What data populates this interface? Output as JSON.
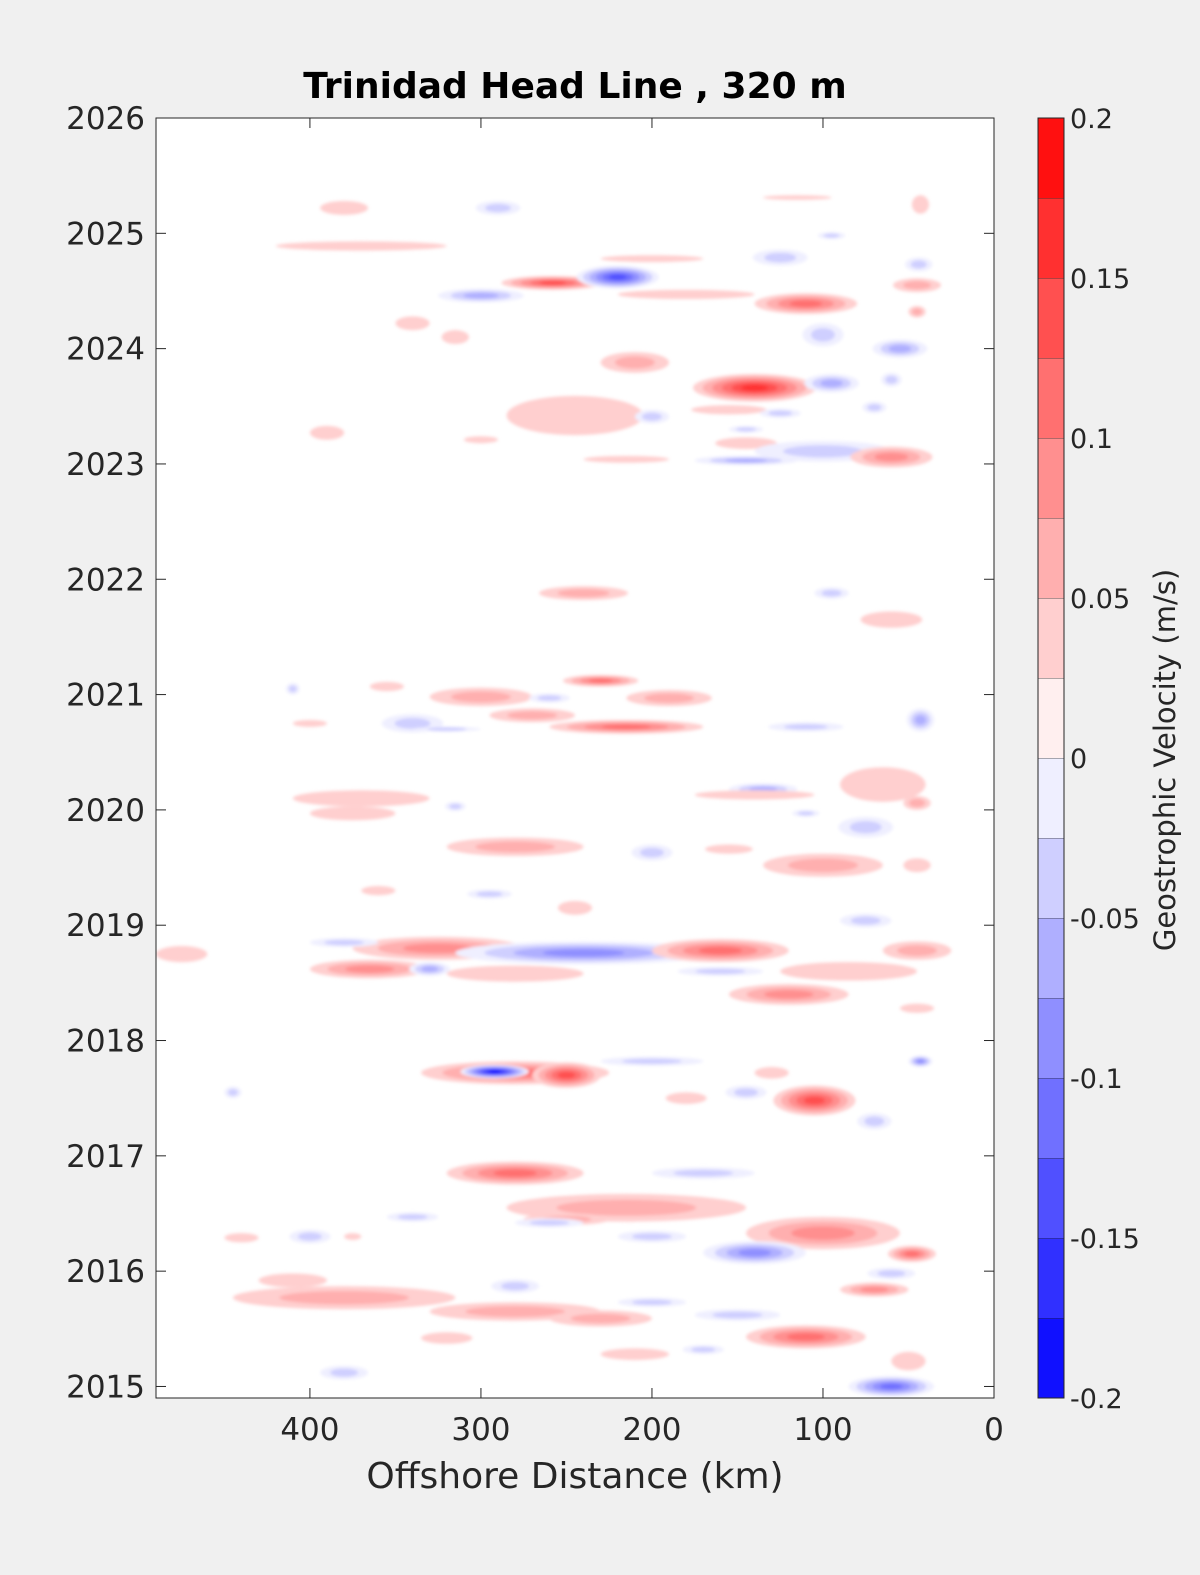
{
  "chart_data": {
    "type": "heatmap",
    "title": "Trinidad Head Line , 320 m",
    "xlabel": "Offshore Distance (km)",
    "ylabel": "",
    "xlim": [
      0,
      490
    ],
    "x_direction": "reversed",
    "ylim": [
      2014.9,
      2026
    ],
    "x_ticks": [
      400,
      300,
      200,
      100,
      0
    ],
    "y_ticks": [
      2015,
      2016,
      2017,
      2018,
      2019,
      2020,
      2021,
      2022,
      2023,
      2024,
      2025,
      2026
    ],
    "grid": false,
    "colorbar": {
      "label": "Geostrophic Velocity (m/s)",
      "range": [
        -0.2,
        0.2
      ],
      "levels": [
        -0.2,
        -0.175,
        -0.15,
        -0.125,
        -0.1,
        -0.075,
        -0.05,
        -0.025,
        0,
        0.025,
        0.05,
        0.075,
        0.1,
        0.125,
        0.15,
        0.175,
        0.2
      ],
      "tick_values": [
        0.2,
        0.15,
        0.1,
        0.05,
        0,
        -0.05,
        -0.1,
        -0.15,
        -0.2
      ],
      "tick_labels": [
        "0.2",
        "0.15",
        "0.1",
        "0.05",
        "0",
        "-0.05",
        "-0.1",
        "-0.15",
        "-0.2"
      ],
      "color_negative": "#0000ff",
      "color_zero": "#ffffff",
      "color_positive": "#ff0000"
    },
    "data_gaps": [
      [
        2022.0,
        2022.75
      ],
      [
        2018.2,
        2018.0
      ],
      [
        2020.65,
        2020.55
      ]
    ],
    "features": [
      {
        "x": 380,
        "y": 2025.22,
        "value": 0.03,
        "rx": 14,
        "ry": 0.06
      },
      {
        "x": 290,
        "y": 2025.22,
        "value": -0.035,
        "rx": 13,
        "ry": 0.06
      },
      {
        "x": 115,
        "y": 2025.31,
        "value": 0.03,
        "rx": 20,
        "ry": 0.02
      },
      {
        "x": 43,
        "y": 2025.25,
        "value": 0.03,
        "rx": 5,
        "ry": 0.08
      },
      {
        "x": 370,
        "y": 2024.89,
        "value": 0.03,
        "rx": 50,
        "ry": 0.04
      },
      {
        "x": 200,
        "y": 2024.78,
        "value": 0.03,
        "rx": 30,
        "ry": 0.03
      },
      {
        "x": 258,
        "y": 2024.57,
        "value": 0.15,
        "rx": 30,
        "ry": 0.06
      },
      {
        "x": 220,
        "y": 2024.62,
        "value": -0.14,
        "rx": 24,
        "ry": 0.1
      },
      {
        "x": 180,
        "y": 2024.47,
        "value": 0.04,
        "rx": 40,
        "ry": 0.04
      },
      {
        "x": 300,
        "y": 2024.46,
        "value": -0.07,
        "rx": 25,
        "ry": 0.06
      },
      {
        "x": 125,
        "y": 2024.79,
        "value": -0.035,
        "rx": 16,
        "ry": 0.07
      },
      {
        "x": 95,
        "y": 2024.98,
        "value": -0.03,
        "rx": 8,
        "ry": 0.03
      },
      {
        "x": 44,
        "y": 2024.73,
        "value": -0.05,
        "rx": 8,
        "ry": 0.06
      },
      {
        "x": 45,
        "y": 2024.55,
        "value": 0.05,
        "rx": 14,
        "ry": 0.06
      },
      {
        "x": 110,
        "y": 2024.39,
        "value": 0.12,
        "rx": 30,
        "ry": 0.09
      },
      {
        "x": 340,
        "y": 2024.22,
        "value": 0.04,
        "rx": 10,
        "ry": 0.06
      },
      {
        "x": 315,
        "y": 2024.1,
        "value": 0.04,
        "rx": 8,
        "ry": 0.06
      },
      {
        "x": 100,
        "y": 2024.12,
        "value": -0.035,
        "rx": 12,
        "ry": 0.1
      },
      {
        "x": 55,
        "y": 2024.0,
        "value": -0.06,
        "rx": 16,
        "ry": 0.08
      },
      {
        "x": 45,
        "y": 2024.32,
        "value": 0.05,
        "rx": 5,
        "ry": 0.05
      },
      {
        "x": 210,
        "y": 2023.88,
        "value": 0.06,
        "rx": 20,
        "ry": 0.09
      },
      {
        "x": 140,
        "y": 2023.66,
        "value": 0.16,
        "rx": 36,
        "ry": 0.12
      },
      {
        "x": 95,
        "y": 2023.7,
        "value": -0.07,
        "rx": 16,
        "ry": 0.08
      },
      {
        "x": 60,
        "y": 2023.73,
        "value": -0.03,
        "rx": 6,
        "ry": 0.06
      },
      {
        "x": 245,
        "y": 2023.42,
        "value": 0.04,
        "rx": 40,
        "ry": 0.17
      },
      {
        "x": 155,
        "y": 2023.47,
        "value": 0.03,
        "rx": 22,
        "ry": 0.04
      },
      {
        "x": 200,
        "y": 2023.41,
        "value": -0.035,
        "rx": 10,
        "ry": 0.06
      },
      {
        "x": 125,
        "y": 2023.44,
        "value": -0.035,
        "rx": 12,
        "ry": 0.04
      },
      {
        "x": 70,
        "y": 2023.49,
        "value": -0.03,
        "rx": 7,
        "ry": 0.05
      },
      {
        "x": 145,
        "y": 2023.3,
        "value": -0.035,
        "rx": 10,
        "ry": 0.03
      },
      {
        "x": 145,
        "y": 2023.18,
        "value": 0.03,
        "rx": 18,
        "ry": 0.05
      },
      {
        "x": 390,
        "y": 2023.27,
        "value": 0.03,
        "rx": 10,
        "ry": 0.06
      },
      {
        "x": 300,
        "y": 2023.21,
        "value": 0.03,
        "rx": 10,
        "ry": 0.03
      },
      {
        "x": 100,
        "y": 2023.11,
        "value": -0.04,
        "rx": 40,
        "ry": 0.09
      },
      {
        "x": 145,
        "y": 2023.03,
        "value": -0.07,
        "rx": 30,
        "ry": 0.04
      },
      {
        "x": 215,
        "y": 2023.04,
        "value": 0.04,
        "rx": 25,
        "ry": 0.03
      },
      {
        "x": 60,
        "y": 2023.06,
        "value": 0.08,
        "rx": 24,
        "ry": 0.09
      },
      {
        "x": 240,
        "y": 2021.88,
        "value": 0.06,
        "rx": 26,
        "ry": 0.06
      },
      {
        "x": 95,
        "y": 2021.88,
        "value": -0.03,
        "rx": 10,
        "ry": 0.05
      },
      {
        "x": 60,
        "y": 2021.65,
        "value": 0.04,
        "rx": 18,
        "ry": 0.07
      },
      {
        "x": 355,
        "y": 2021.07,
        "value": 0.03,
        "rx": 10,
        "ry": 0.04
      },
      {
        "x": 410,
        "y": 2021.05,
        "value": -0.03,
        "rx": 4,
        "ry": 0.05
      },
      {
        "x": 230,
        "y": 2021.12,
        "value": 0.1,
        "rx": 22,
        "ry": 0.05
      },
      {
        "x": 300,
        "y": 2020.98,
        "value": 0.06,
        "rx": 30,
        "ry": 0.08
      },
      {
        "x": 190,
        "y": 2020.97,
        "value": 0.05,
        "rx": 25,
        "ry": 0.07
      },
      {
        "x": 260,
        "y": 2020.97,
        "value": -0.035,
        "rx": 12,
        "ry": 0.04
      },
      {
        "x": 270,
        "y": 2020.82,
        "value": 0.06,
        "rx": 25,
        "ry": 0.06
      },
      {
        "x": 340,
        "y": 2020.75,
        "value": -0.04,
        "rx": 18,
        "ry": 0.08
      },
      {
        "x": 215,
        "y": 2020.72,
        "value": 0.12,
        "rx": 45,
        "ry": 0.06
      },
      {
        "x": 110,
        "y": 2020.72,
        "value": -0.035,
        "rx": 22,
        "ry": 0.04
      },
      {
        "x": 43,
        "y": 2020.78,
        "value": -0.06,
        "rx": 8,
        "ry": 0.1
      },
      {
        "x": 400,
        "y": 2020.75,
        "value": 0.03,
        "rx": 10,
        "ry": 0.03
      },
      {
        "x": 320,
        "y": 2020.7,
        "value": -0.03,
        "rx": 20,
        "ry": 0.02
      },
      {
        "x": 370,
        "y": 2020.1,
        "value": 0.03,
        "rx": 40,
        "ry": 0.07
      },
      {
        "x": 375,
        "y": 2019.97,
        "value": 0.04,
        "rx": 25,
        "ry": 0.06
      },
      {
        "x": 315,
        "y": 2020.03,
        "value": -0.03,
        "rx": 6,
        "ry": 0.04
      },
      {
        "x": 135,
        "y": 2020.18,
        "value": -0.06,
        "rx": 20,
        "ry": 0.05
      },
      {
        "x": 65,
        "y": 2020.22,
        "value": 0.04,
        "rx": 25,
        "ry": 0.15
      },
      {
        "x": 140,
        "y": 2020.13,
        "value": 0.03,
        "rx": 35,
        "ry": 0.04
      },
      {
        "x": 45,
        "y": 2020.06,
        "value": 0.05,
        "rx": 8,
        "ry": 0.06
      },
      {
        "x": 110,
        "y": 2019.97,
        "value": -0.03,
        "rx": 8,
        "ry": 0.03
      },
      {
        "x": 75,
        "y": 2019.85,
        "value": -0.04,
        "rx": 16,
        "ry": 0.09
      },
      {
        "x": 280,
        "y": 2019.68,
        "value": 0.06,
        "rx": 40,
        "ry": 0.08
      },
      {
        "x": 200,
        "y": 2019.63,
        "value": -0.035,
        "rx": 12,
        "ry": 0.07
      },
      {
        "x": 155,
        "y": 2019.66,
        "value": 0.03,
        "rx": 14,
        "ry": 0.04
      },
      {
        "x": 100,
        "y": 2019.52,
        "value": 0.07,
        "rx": 35,
        "ry": 0.1
      },
      {
        "x": 45,
        "y": 2019.52,
        "value": 0.04,
        "rx": 8,
        "ry": 0.06
      },
      {
        "x": 360,
        "y": 2019.3,
        "value": 0.03,
        "rx": 10,
        "ry": 0.04
      },
      {
        "x": 295,
        "y": 2019.27,
        "value": -0.035,
        "rx": 13,
        "ry": 0.04
      },
      {
        "x": 245,
        "y": 2019.15,
        "value": 0.03,
        "rx": 10,
        "ry": 0.06
      },
      {
        "x": 75,
        "y": 2019.04,
        "value": -0.03,
        "rx": 15,
        "ry": 0.06
      },
      {
        "x": 325,
        "y": 2018.8,
        "value": 0.09,
        "rx": 50,
        "ry": 0.1
      },
      {
        "x": 240,
        "y": 2018.76,
        "value": -0.08,
        "rx": 75,
        "ry": 0.1
      },
      {
        "x": 160,
        "y": 2018.78,
        "value": 0.11,
        "rx": 40,
        "ry": 0.1
      },
      {
        "x": 365,
        "y": 2018.62,
        "value": 0.09,
        "rx": 35,
        "ry": 0.08
      },
      {
        "x": 330,
        "y": 2018.62,
        "value": -0.06,
        "rx": 12,
        "ry": 0.06
      },
      {
        "x": 280,
        "y": 2018.58,
        "value": 0.04,
        "rx": 40,
        "ry": 0.07
      },
      {
        "x": 160,
        "y": 2018.6,
        "value": -0.035,
        "rx": 25,
        "ry": 0.04
      },
      {
        "x": 85,
        "y": 2018.6,
        "value": 0.04,
        "rx": 40,
        "ry": 0.08
      },
      {
        "x": 120,
        "y": 2018.4,
        "value": 0.08,
        "rx": 35,
        "ry": 0.09
      },
      {
        "x": 45,
        "y": 2018.28,
        "value": 0.04,
        "rx": 10,
        "ry": 0.04
      },
      {
        "x": 45,
        "y": 2018.78,
        "value": 0.06,
        "rx": 20,
        "ry": 0.08
      },
      {
        "x": 380,
        "y": 2018.85,
        "value": -0.035,
        "rx": 20,
        "ry": 0.04
      },
      {
        "x": 280,
        "y": 2017.72,
        "value": 0.1,
        "rx": 55,
        "ry": 0.1
      },
      {
        "x": 292,
        "y": 2017.73,
        "value": -0.18,
        "rx": 20,
        "ry": 0.06
      },
      {
        "x": 250,
        "y": 2017.7,
        "value": 0.14,
        "rx": 20,
        "ry": 0.11
      },
      {
        "x": 200,
        "y": 2017.82,
        "value": -0.04,
        "rx": 30,
        "ry": 0.04
      },
      {
        "x": 130,
        "y": 2017.72,
        "value": 0.04,
        "rx": 10,
        "ry": 0.05
      },
      {
        "x": 43,
        "y": 2017.82,
        "value": -0.08,
        "rx": 7,
        "ry": 0.05
      },
      {
        "x": 105,
        "y": 2017.48,
        "value": 0.13,
        "rx": 24,
        "ry": 0.13
      },
      {
        "x": 145,
        "y": 2017.55,
        "value": -0.05,
        "rx": 12,
        "ry": 0.06
      },
      {
        "x": 180,
        "y": 2017.5,
        "value": 0.03,
        "rx": 12,
        "ry": 0.05
      },
      {
        "x": 70,
        "y": 2017.3,
        "value": -0.035,
        "rx": 10,
        "ry": 0.07
      },
      {
        "x": 445,
        "y": 2017.55,
        "value": -0.03,
        "rx": 5,
        "ry": 0.05
      },
      {
        "x": 280,
        "y": 2016.85,
        "value": 0.1,
        "rx": 40,
        "ry": 0.1
      },
      {
        "x": 170,
        "y": 2016.85,
        "value": -0.04,
        "rx": 30,
        "ry": 0.05
      },
      {
        "x": 215,
        "y": 2016.55,
        "value": 0.05,
        "rx": 70,
        "ry": 0.12
      },
      {
        "x": 250,
        "y": 2016.45,
        "value": 0.06,
        "rx": 25,
        "ry": 0.05
      },
      {
        "x": 340,
        "y": 2016.47,
        "value": -0.035,
        "rx": 15,
        "ry": 0.04
      },
      {
        "x": 260,
        "y": 2016.42,
        "value": -0.035,
        "rx": 20,
        "ry": 0.04
      },
      {
        "x": 100,
        "y": 2016.33,
        "value": 0.08,
        "rx": 45,
        "ry": 0.14
      },
      {
        "x": 200,
        "y": 2016.3,
        "value": -0.035,
        "rx": 20,
        "ry": 0.05
      },
      {
        "x": 140,
        "y": 2016.16,
        "value": -0.09,
        "rx": 30,
        "ry": 0.1
      },
      {
        "x": 48,
        "y": 2016.15,
        "value": 0.1,
        "rx": 14,
        "ry": 0.07
      },
      {
        "x": 375,
        "y": 2016.3,
        "value": 0.03,
        "rx": 5,
        "ry": 0.03
      },
      {
        "x": 400,
        "y": 2016.3,
        "value": -0.035,
        "rx": 12,
        "ry": 0.06
      },
      {
        "x": 440,
        "y": 2016.29,
        "value": 0.03,
        "rx": 10,
        "ry": 0.04
      },
      {
        "x": 380,
        "y": 2015.77,
        "value": 0.05,
        "rx": 65,
        "ry": 0.1
      },
      {
        "x": 410,
        "y": 2015.92,
        "value": 0.03,
        "rx": 20,
        "ry": 0.06
      },
      {
        "x": 280,
        "y": 2015.87,
        "value": -0.035,
        "rx": 14,
        "ry": 0.06
      },
      {
        "x": 70,
        "y": 2015.84,
        "value": 0.08,
        "rx": 20,
        "ry": 0.06
      },
      {
        "x": 60,
        "y": 2015.98,
        "value": -0.03,
        "rx": 14,
        "ry": 0.05
      },
      {
        "x": 280,
        "y": 2015.65,
        "value": 0.06,
        "rx": 50,
        "ry": 0.08
      },
      {
        "x": 230,
        "y": 2015.59,
        "value": 0.06,
        "rx": 30,
        "ry": 0.07
      },
      {
        "x": 200,
        "y": 2015.73,
        "value": -0.03,
        "rx": 20,
        "ry": 0.04
      },
      {
        "x": 150,
        "y": 2015.62,
        "value": -0.035,
        "rx": 25,
        "ry": 0.05
      },
      {
        "x": 110,
        "y": 2015.43,
        "value": 0.1,
        "rx": 35,
        "ry": 0.1
      },
      {
        "x": 320,
        "y": 2015.42,
        "value": 0.04,
        "rx": 15,
        "ry": 0.05
      },
      {
        "x": 210,
        "y": 2015.28,
        "value": 0.04,
        "rx": 20,
        "ry": 0.05
      },
      {
        "x": 170,
        "y": 2015.32,
        "value": -0.03,
        "rx": 12,
        "ry": 0.04
      },
      {
        "x": 50,
        "y": 2015.22,
        "value": 0.04,
        "rx": 10,
        "ry": 0.08
      },
      {
        "x": 380,
        "y": 2015.12,
        "value": -0.035,
        "rx": 14,
        "ry": 0.06
      },
      {
        "x": 60,
        "y": 2015.0,
        "value": -0.12,
        "rx": 25,
        "ry": 0.09
      },
      {
        "x": 475,
        "y": 2018.75,
        "value": 0.04,
        "rx": 15,
        "ry": 0.07
      }
    ]
  }
}
